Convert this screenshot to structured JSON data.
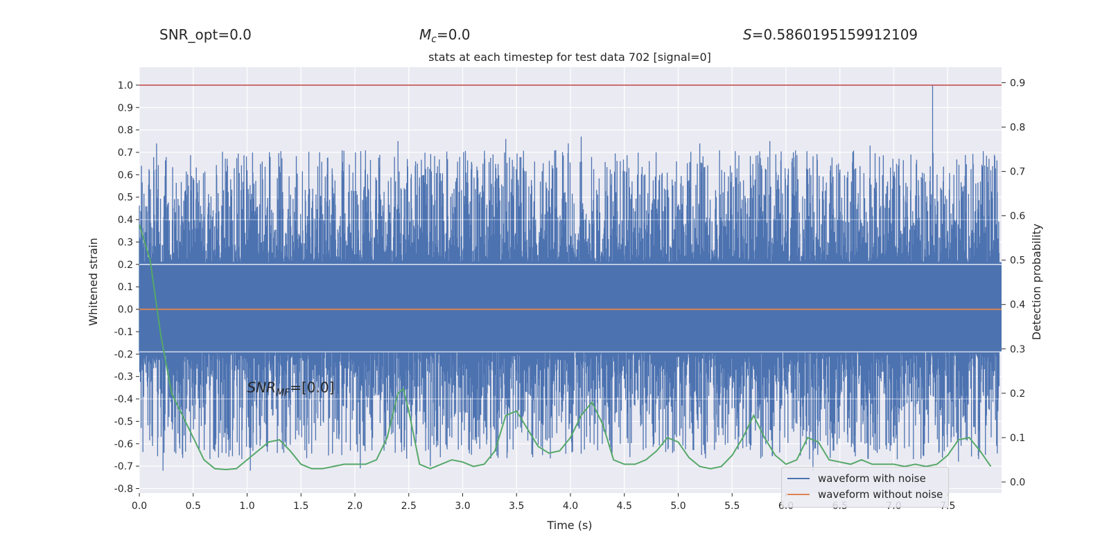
{
  "header": {
    "snr_opt": "SNR_opt=0.0",
    "mc_symbol": "M",
    "mc_subscript": "c",
    "mc_value": "=0.0",
    "s_symbol": "S",
    "s_value": "=0.5860195159912109"
  },
  "chart_data": {
    "type": "line",
    "title": "stats at each timestep for test data 702 [signal=0]",
    "xlabel": "Time (s)",
    "ylabel": "Whitened strain",
    "y2label": "Detection probability",
    "xlim": [
      0,
      8
    ],
    "ylim": [
      -0.82,
      1.08
    ],
    "y2lim": [
      -0.025,
      0.935
    ],
    "xticks": [
      "0.0",
      "0.5",
      "1.0",
      "1.5",
      "2.0",
      "2.5",
      "3.0",
      "3.5",
      "4.0",
      "4.5",
      "5.0",
      "5.5",
      "6.0",
      "6.5",
      "7.0",
      "7.5"
    ],
    "yticks": [
      "1.0",
      "0.9",
      "0.8",
      "0.7",
      "0.6",
      "0.5",
      "0.4",
      "0.3",
      "0.2",
      "0.1",
      "0.0",
      "-0.1",
      "-0.2",
      "-0.3",
      "-0.4",
      "-0.5",
      "-0.6",
      "-0.7",
      "-0.8"
    ],
    "y2ticks": [
      "0.9",
      "0.8",
      "0.7",
      "0.6",
      "0.5",
      "0.4",
      "0.3",
      "0.2",
      "0.1",
      "0.0"
    ],
    "threshold": {
      "value": 1.0,
      "color": "#c44e52"
    },
    "annotation": {
      "symbol": "SNR",
      "subscript": "MF",
      "value": "=[0.0]",
      "x": 1.0,
      "y": -0.37
    },
    "series": [
      {
        "name": "waveform with noise",
        "color": "#4c72b0",
        "description": "dense whitened noise, values between about -0.72 and 1.0",
        "typical_band": [
          -0.19,
          0.21
        ],
        "spike_peaks": [
          [
            0.02,
            0.64
          ],
          [
            0.16,
            0.74
          ],
          [
            0.22,
            -0.72
          ],
          [
            1.0,
            0.62
          ],
          [
            1.03,
            -0.72
          ],
          [
            1.88,
            0.62
          ],
          [
            2.05,
            -0.71
          ],
          [
            2.4,
            0.75
          ],
          [
            2.7,
            -0.7
          ],
          [
            3.4,
            0.76
          ],
          [
            3.65,
            -0.66
          ],
          [
            3.98,
            0.74
          ],
          [
            4.1,
            0.77
          ],
          [
            4.7,
            -0.62
          ],
          [
            5.2,
            0.74
          ],
          [
            5.85,
            0.75
          ],
          [
            6.25,
            -0.72
          ],
          [
            6.78,
            0.73
          ],
          [
            7.36,
            1.0
          ],
          [
            7.6,
            -0.68
          ],
          [
            7.9,
            0.62
          ]
        ]
      },
      {
        "name": "waveform without noise",
        "color": "#dd8452",
        "values_constant": 0.0
      },
      {
        "name": "",
        "color": "#55a868",
        "axis": "right",
        "x": [
          0.0,
          0.1,
          0.2,
          0.3,
          0.4,
          0.5,
          0.6,
          0.7,
          0.8,
          0.9,
          1.0,
          1.1,
          1.2,
          1.3,
          1.4,
          1.5,
          1.6,
          1.7,
          1.8,
          1.9,
          2.0,
          2.1,
          2.2,
          2.3,
          2.4,
          2.45,
          2.5,
          2.6,
          2.7,
          2.8,
          2.9,
          3.0,
          3.1,
          3.2,
          3.3,
          3.4,
          3.5,
          3.6,
          3.7,
          3.8,
          3.9,
          4.0,
          4.1,
          4.2,
          4.3,
          4.4,
          4.5,
          4.6,
          4.7,
          4.8,
          4.9,
          5.0,
          5.1,
          5.2,
          5.3,
          5.4,
          5.5,
          5.6,
          5.7,
          5.8,
          5.9,
          6.0,
          6.1,
          6.2,
          6.3,
          6.4,
          6.5,
          6.6,
          6.7,
          6.8,
          6.9,
          7.0,
          7.1,
          7.2,
          7.3,
          7.4,
          7.5,
          7.6,
          7.7,
          7.8,
          7.9
        ],
        "values": [
          0.58,
          0.5,
          0.33,
          0.2,
          0.15,
          0.1,
          0.05,
          0.03,
          0.028,
          0.03,
          0.05,
          0.07,
          0.09,
          0.095,
          0.07,
          0.04,
          0.03,
          0.03,
          0.035,
          0.04,
          0.04,
          0.04,
          0.05,
          0.1,
          0.2,
          0.21,
          0.16,
          0.04,
          0.03,
          0.04,
          0.05,
          0.045,
          0.035,
          0.04,
          0.07,
          0.15,
          0.16,
          0.12,
          0.08,
          0.065,
          0.07,
          0.1,
          0.15,
          0.18,
          0.13,
          0.05,
          0.04,
          0.04,
          0.05,
          0.07,
          0.1,
          0.09,
          0.055,
          0.035,
          0.03,
          0.035,
          0.06,
          0.1,
          0.15,
          0.1,
          0.06,
          0.04,
          0.05,
          0.1,
          0.09,
          0.05,
          0.045,
          0.04,
          0.05,
          0.04,
          0.04,
          0.04,
          0.035,
          0.04,
          0.035,
          0.04,
          0.06,
          0.095,
          0.1,
          0.07,
          0.035
        ]
      }
    ]
  }
}
